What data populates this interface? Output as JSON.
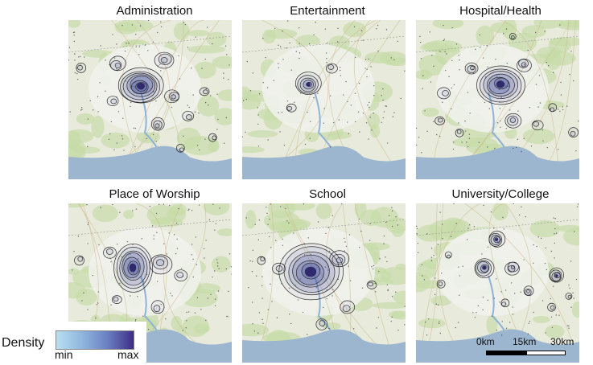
{
  "panels": [
    {
      "title": "Administration"
    },
    {
      "title": "Entertainment"
    },
    {
      "title": "Hospital/Health"
    },
    {
      "title": "Place of Worship"
    },
    {
      "title": "School"
    },
    {
      "title": "University/College"
    }
  ],
  "legend": {
    "title": "Density",
    "min_label": "min",
    "max_label": "max",
    "colors": [
      "#b9dff0",
      "#3e2d86"
    ]
  },
  "scale": {
    "labels": [
      "0km",
      "15km",
      "30km"
    ]
  },
  "colors": {
    "sea": "#9db6cf",
    "land": "#e8eadc",
    "green": "#c8dba8",
    "urban": "#f2f2ee",
    "river": "#8fb3d4",
    "contour": "#2b2b2b"
  }
}
